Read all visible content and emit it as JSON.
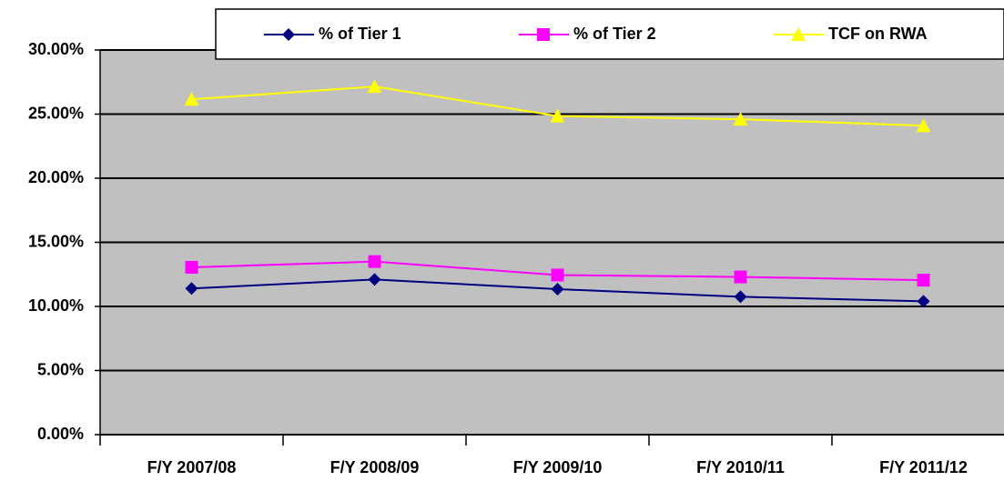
{
  "chart_data": {
    "type": "line",
    "categories": [
      "F/Y 2007/08",
      "F/Y 2008/09",
      "F/Y 2009/10",
      "F/Y 2010/11",
      "F/Y 2011/12"
    ],
    "series": [
      {
        "name": "% of Tier 1",
        "color": "#000080",
        "marker": "diamond",
        "values": [
          11.4,
          12.1,
          11.35,
          10.75,
          10.4
        ]
      },
      {
        "name": "% of Tier 2",
        "color": "#ff00ff",
        "marker": "square",
        "values": [
          13.05,
          13.5,
          12.45,
          12.3,
          12.05
        ]
      },
      {
        "name": "TCF on RWA",
        "color": "#ffff00",
        "marker": "triangle",
        "values": [
          26.15,
          27.15,
          24.85,
          24.6,
          24.1
        ]
      }
    ],
    "ylim": [
      0,
      30
    ],
    "yticks": [
      {
        "value": 0,
        "label": "0.00%"
      },
      {
        "value": 5,
        "label": "5.00%"
      },
      {
        "value": 10,
        "label": "10.00%"
      },
      {
        "value": 15,
        "label": "15.00%"
      },
      {
        "value": 20,
        "label": "20.00%"
      },
      {
        "value": 25,
        "label": "25.00%"
      },
      {
        "value": 30,
        "label": "30.00%"
      }
    ],
    "grid": true,
    "legend": "top"
  }
}
